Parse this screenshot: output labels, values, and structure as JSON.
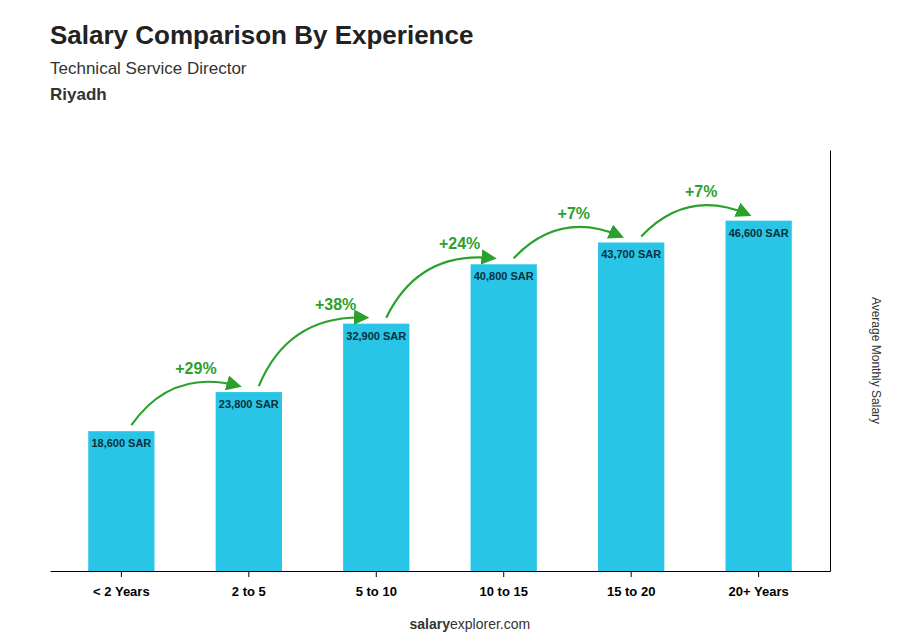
{
  "chart_data": {
    "type": "bar",
    "title": "Salary Comparison By Experience",
    "subtitle": "Technical Service Director",
    "annotations": [
      "Riyadh",
      "salary",
      "explorer.com"
    ],
    "ylabel": "Average Monthly Salary",
    "categories": [
      "< 2 Years",
      "2 to 5",
      "5 to 10",
      "10 to 15",
      "15 to 20",
      "20+ Years"
    ],
    "values": [
      18600,
      23800,
      32900,
      40800,
      43700,
      46600
    ],
    "value_labels": [
      "18,600 SAR",
      "23,800 SAR",
      "32,900 SAR",
      "40,800 SAR",
      "43,700 SAR",
      "46,600 SAR"
    ],
    "change_labels": [
      "+29%",
      "+38%",
      "+24%",
      "+7%",
      "+7%"
    ],
    "color": "#29c5e6",
    "ylim": [
      0,
      56000
    ],
    "grid": false,
    "data_labels": true,
    "tick_labels": "x"
  }
}
